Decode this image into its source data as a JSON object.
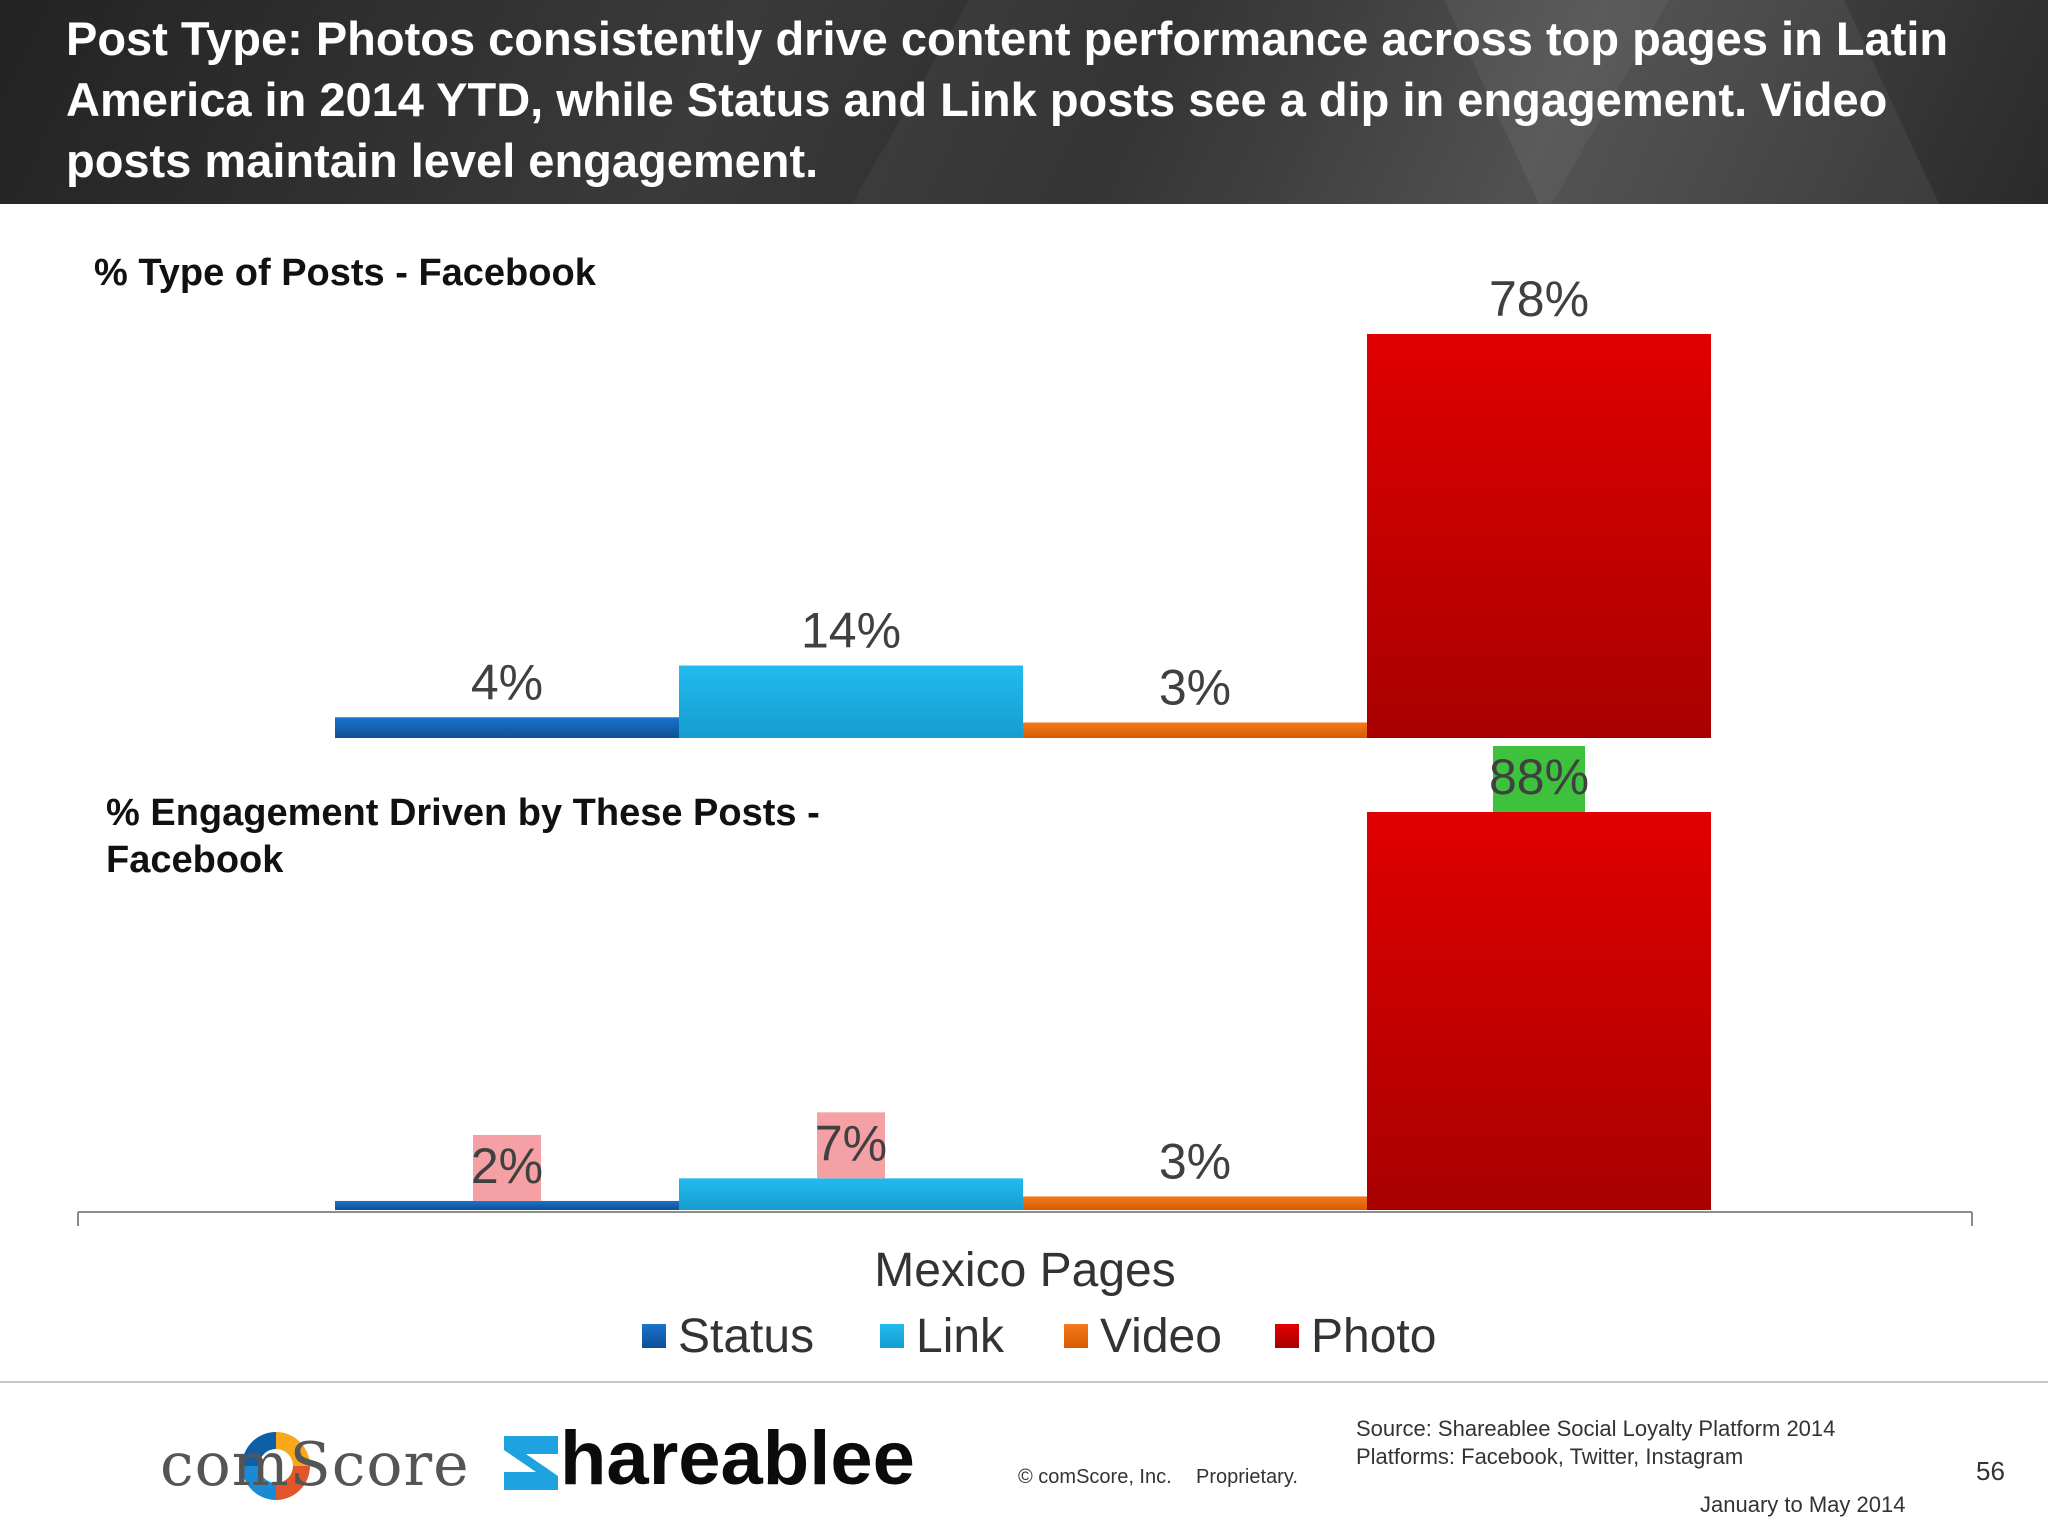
{
  "header": {
    "title": "Post Type: Photos consistently drive content performance across top pages in Latin America in 2014 YTD, while Status and Link posts see a dip in engagement. Video posts maintain level engagement."
  },
  "chart_data": [
    {
      "type": "bar",
      "title": "% Type of Posts - Facebook",
      "categories": [
        "Mexico Pages"
      ],
      "series": [
        {
          "name": "Status",
          "values": [
            4
          ],
          "color": "#1463b5",
          "label": "4%"
        },
        {
          "name": "Link",
          "values": [
            14
          ],
          "color": "#1fb1e6",
          "label": "14%"
        },
        {
          "name": "Video",
          "values": [
            3
          ],
          "color": "#f06a0c",
          "label": "3%"
        },
        {
          "name": "Photo",
          "values": [
            78
          ],
          "color": "#d00000",
          "label": "78%"
        }
      ],
      "ylim": [
        0,
        78
      ]
    },
    {
      "type": "bar",
      "title": "% Engagement Driven by These Posts - Facebook",
      "categories": [
        "Mexico Pages"
      ],
      "series": [
        {
          "name": "Status",
          "values": [
            2
          ],
          "color": "#1463b5",
          "label": "2%",
          "highlight": "#f4a0a4"
        },
        {
          "name": "Link",
          "values": [
            7
          ],
          "color": "#1fb1e6",
          "label": "7%",
          "highlight": "#f4a0a4"
        },
        {
          "name": "Video",
          "values": [
            3
          ],
          "color": "#f06a0c",
          "label": "3%"
        },
        {
          "name": "Photo",
          "values": [
            88
          ],
          "color": "#d00000",
          "label": "88%",
          "highlight": "#3ec23e"
        }
      ],
      "ylim": [
        0,
        88
      ]
    }
  ],
  "xaxis_label": "Mexico Pages",
  "legend": {
    "placement": "bottom",
    "items": [
      "Status",
      "Link",
      "Video",
      "Photo"
    ]
  },
  "footer": {
    "comscore_logo": "comScore",
    "shareable_logo": "hareablee",
    "copyright": "© comScore, Inc.",
    "proprietary": "Proprietary.",
    "source": "Source: Shareablee Social Loyalty Platform 2014",
    "platforms": "Platforms: Facebook, Twitter, Instagram",
    "date_range": "January to May 2014",
    "page_number": "56"
  },
  "colors": {
    "status": "#1463b5",
    "link": "#1fb1e6",
    "video": "#f06a0c",
    "photo": "#d00000",
    "decrease_highlight": "#f4a0a4",
    "increase_highlight": "#3ec23e"
  }
}
